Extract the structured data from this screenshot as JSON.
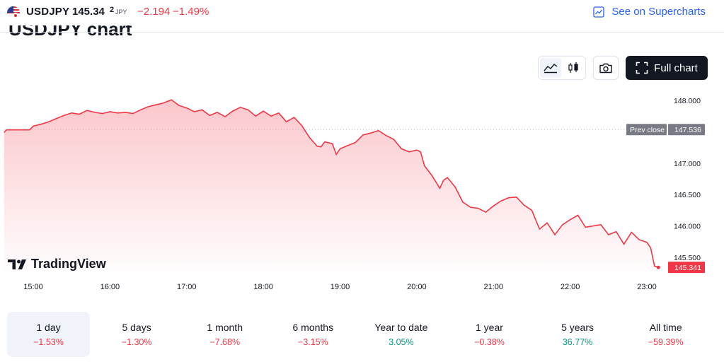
{
  "header": {
    "symbol": "USDJPY",
    "price_main": "145.34",
    "price_last": "2",
    "currency": "JPY",
    "change": "−2.194",
    "change_percent": "−1.49%",
    "supercharts_label": "See on Supercharts"
  },
  "page_title_partial": "USDJPY chart",
  "toolbar": {
    "full_chart_label": "Full chart"
  },
  "brand": "TradingView",
  "colors": {
    "line": "#f23645",
    "positive": "#089981",
    "negative": "#f23645",
    "accent": "#2962ff"
  },
  "chart_data": {
    "type": "area",
    "x_ticks": [
      "15:00",
      "16:00",
      "17:00",
      "18:00",
      "19:00",
      "20:00",
      "21:00",
      "22:00",
      "23:00"
    ],
    "y_ticks": [
      "145.500",
      "146.000",
      "146.500",
      "147.000",
      "148.000"
    ],
    "ylim": [
      145.2,
      148.1
    ],
    "xlim": [
      14.6,
      23.2
    ],
    "prev_close": {
      "label": "Prev close",
      "value": 147.536,
      "text": "147.536"
    },
    "last_value": {
      "value": 145.341,
      "text": "145.341"
    },
    "series": [
      {
        "values": [
          [
            14.62,
            147.49
          ],
          [
            14.65,
            147.53
          ],
          [
            14.8,
            147.53
          ],
          [
            14.95,
            147.53
          ],
          [
            15.0,
            147.59
          ],
          [
            15.1,
            147.62
          ],
          [
            15.2,
            147.66
          ],
          [
            15.3,
            147.71
          ],
          [
            15.4,
            147.76
          ],
          [
            15.5,
            147.8
          ],
          [
            15.6,
            147.78
          ],
          [
            15.7,
            147.84
          ],
          [
            15.8,
            147.81
          ],
          [
            15.9,
            147.79
          ],
          [
            16.0,
            147.82
          ],
          [
            16.1,
            147.8
          ],
          [
            16.2,
            147.81
          ],
          [
            16.3,
            147.79
          ],
          [
            16.4,
            147.85
          ],
          [
            16.5,
            147.9
          ],
          [
            16.6,
            147.93
          ],
          [
            16.7,
            147.96
          ],
          [
            16.8,
            148.01
          ],
          [
            16.9,
            147.92
          ],
          [
            17.0,
            147.88
          ],
          [
            17.1,
            147.82
          ],
          [
            17.2,
            147.85
          ],
          [
            17.3,
            147.76
          ],
          [
            17.4,
            147.81
          ],
          [
            17.5,
            147.74
          ],
          [
            17.6,
            147.83
          ],
          [
            17.7,
            147.89
          ],
          [
            17.8,
            147.85
          ],
          [
            17.9,
            147.75
          ],
          [
            18.0,
            147.83
          ],
          [
            18.1,
            147.75
          ],
          [
            18.2,
            147.8
          ],
          [
            18.3,
            147.66
          ],
          [
            18.4,
            147.73
          ],
          [
            18.5,
            147.6
          ],
          [
            18.6,
            147.41
          ],
          [
            18.7,
            147.27
          ],
          [
            18.75,
            147.26
          ],
          [
            18.8,
            147.34
          ],
          [
            18.9,
            147.31
          ],
          [
            18.95,
            147.14
          ],
          [
            19.0,
            147.23
          ],
          [
            19.1,
            147.28
          ],
          [
            19.2,
            147.33
          ],
          [
            19.3,
            147.45
          ],
          [
            19.4,
            147.48
          ],
          [
            19.5,
            147.52
          ],
          [
            19.6,
            147.44
          ],
          [
            19.7,
            147.38
          ],
          [
            19.8,
            147.23
          ],
          [
            19.9,
            147.18
          ],
          [
            20.0,
            147.21
          ],
          [
            20.05,
            147.18
          ],
          [
            20.1,
            146.96
          ],
          [
            20.2,
            146.8
          ],
          [
            20.3,
            146.6
          ],
          [
            20.35,
            146.73
          ],
          [
            20.4,
            146.77
          ],
          [
            20.5,
            146.62
          ],
          [
            20.6,
            146.38
          ],
          [
            20.7,
            146.3
          ],
          [
            20.8,
            146.28
          ],
          [
            20.9,
            146.22
          ],
          [
            21.0,
            146.32
          ],
          [
            21.1,
            146.4
          ],
          [
            21.2,
            146.45
          ],
          [
            21.3,
            146.46
          ],
          [
            21.4,
            146.33
          ],
          [
            21.5,
            146.25
          ],
          [
            21.6,
            145.95
          ],
          [
            21.7,
            146.05
          ],
          [
            21.8,
            145.86
          ],
          [
            21.9,
            146.02
          ],
          [
            22.0,
            146.1
          ],
          [
            22.1,
            146.17
          ],
          [
            22.2,
            145.98
          ],
          [
            22.3,
            146.0
          ],
          [
            22.4,
            146.02
          ],
          [
            22.5,
            145.86
          ],
          [
            22.6,
            145.91
          ],
          [
            22.7,
            145.71
          ],
          [
            22.8,
            145.9
          ],
          [
            22.9,
            145.78
          ],
          [
            23.0,
            145.74
          ],
          [
            23.05,
            145.65
          ],
          [
            23.1,
            145.36
          ],
          [
            23.15,
            145.34
          ]
        ]
      }
    ],
    "grid": false
  },
  "periods": [
    {
      "label": "1 day",
      "value": "−1.53%",
      "sign": "neg",
      "active": true
    },
    {
      "label": "5 days",
      "value": "−1.30%",
      "sign": "neg",
      "active": false
    },
    {
      "label": "1 month",
      "value": "−7.68%",
      "sign": "neg",
      "active": false
    },
    {
      "label": "6 months",
      "value": "−3.15%",
      "sign": "neg",
      "active": false
    },
    {
      "label": "Year to date",
      "value": "3.05%",
      "sign": "pos",
      "active": false
    },
    {
      "label": "1 year",
      "value": "−0.38%",
      "sign": "neg",
      "active": false
    },
    {
      "label": "5 years",
      "value": "36.77%",
      "sign": "pos",
      "active": false
    },
    {
      "label": "All time",
      "value": "−59.39%",
      "sign": "neg",
      "active": false
    }
  ]
}
